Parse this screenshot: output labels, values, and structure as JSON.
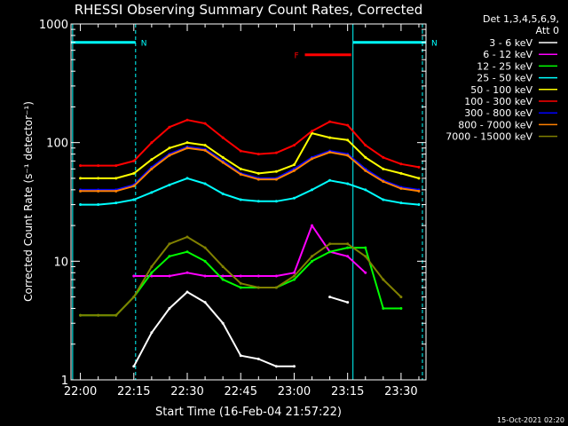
{
  "chart_data": {
    "type": "line",
    "title": "RHESSI Observing Summary Count Rates, Corrected",
    "xlabel": "Start Time (16-Feb-04 21:57:22)",
    "ylabel": "Corrected Count Rate (s⁻¹ detector⁻¹)",
    "yscale": "log",
    "ylim": [
      1,
      1000
    ],
    "xlim": [
      "21:57:22",
      "23:37:00"
    ],
    "x_ticks": [
      "22:00",
      "22:15",
      "22:30",
      "22:45",
      "23:00",
      "23:15",
      "23:30"
    ],
    "y_ticks": [
      "1",
      "10",
      "100",
      "1000"
    ],
    "legend_title": [
      "Det 1,3,4,5,6,9,",
      "Att 0"
    ],
    "legend_placement": "top-right, outside plot",
    "grid": false,
    "footer_text": "15-Oct-2021 02:20",
    "annotations": [
      {
        "label": "N",
        "color": "#00ffff",
        "start": "21:57:22",
        "end": "22:15:30",
        "level": 700,
        "meaning": "night"
      },
      {
        "label": "N",
        "color": "#00ffff",
        "start": "23:16:30",
        "end": "23:37:00",
        "level": 700,
        "meaning": "night"
      },
      {
        "label": "F",
        "color": "#ff0000",
        "start": "23:03:00",
        "end": "23:16:00",
        "level": 550,
        "meaning": "flare"
      }
    ],
    "vertical_lines": [
      {
        "time": "21:57:50",
        "style": "solid",
        "color": "#00ffff"
      },
      {
        "time": "22:15:30",
        "style": "dashed",
        "color": "#00ffff"
      },
      {
        "time": "23:16:30",
        "style": "solid",
        "color": "#00ffff"
      },
      {
        "time": "23:36:00",
        "style": "dashed",
        "color": "#00ffff"
      }
    ],
    "x": [
      "22:00",
      "22:05",
      "22:10",
      "22:15",
      "22:20",
      "22:25",
      "22:30",
      "22:35",
      "22:40",
      "22:45",
      "22:50",
      "22:55",
      "23:00",
      "23:05",
      "23:10",
      "23:15",
      "23:20",
      "23:25",
      "23:30",
      "23:35"
    ],
    "series": [
      {
        "name": "3 - 6 keV",
        "color": "#ffffff",
        "values": [
          null,
          null,
          null,
          1.3,
          2.5,
          4.0,
          5.5,
          4.5,
          3.0,
          1.6,
          1.5,
          1.3,
          1.3,
          null,
          5.0,
          4.5,
          null,
          null,
          null,
          null
        ]
      },
      {
        "name": "6 - 12 keV",
        "color": "#ff00ff",
        "values": [
          null,
          null,
          null,
          7.5,
          7.5,
          7.5,
          8.0,
          7.5,
          7.5,
          7.5,
          7.5,
          7.5,
          8.0,
          20,
          12,
          11,
          8.0,
          null,
          null,
          null
        ]
      },
      {
        "name": "12 - 25 keV",
        "color": "#00ff00",
        "values": [
          3.5,
          3.5,
          3.5,
          5.0,
          8.0,
          11,
          12,
          10,
          7.0,
          6.0,
          6.0,
          6.0,
          7.0,
          10,
          12,
          13,
          13,
          4.0,
          4.0,
          null
        ]
      },
      {
        "name": "25 - 50 keV",
        "color": "#00ffff",
        "values": [
          30,
          30,
          31,
          33,
          38,
          44,
          50,
          45,
          37,
          33,
          32,
          32,
          34,
          40,
          48,
          45,
          40,
          33,
          31,
          30
        ]
      },
      {
        "name": "50 - 100 keV",
        "color": "#ffff00",
        "values": [
          50,
          50,
          50,
          55,
          72,
          90,
          100,
          95,
          75,
          60,
          55,
          57,
          65,
          120,
          110,
          105,
          75,
          60,
          55,
          50
        ]
      },
      {
        "name": "100 - 300 keV",
        "color": "#ff0000",
        "values": [
          64,
          64,
          64,
          70,
          100,
          135,
          155,
          145,
          110,
          85,
          80,
          82,
          95,
          125,
          150,
          140,
          95,
          75,
          66,
          62
        ]
      },
      {
        "name": "300 - 800 keV",
        "color": "#0000ff",
        "values": [
          40,
          40,
          40,
          44,
          62,
          80,
          92,
          88,
          70,
          55,
          50,
          50,
          60,
          75,
          85,
          80,
          60,
          48,
          42,
          40
        ]
      },
      {
        "name": "800 - 7000 keV",
        "color": "#ff8000",
        "values": [
          39,
          39,
          39,
          43,
          60,
          78,
          90,
          86,
          68,
          54,
          49,
          49,
          58,
          73,
          83,
          78,
          58,
          47,
          41,
          39
        ]
      },
      {
        "name": "7000 - 15000 keV",
        "color": "#808000",
        "values": [
          3.5,
          3.5,
          3.5,
          5.0,
          9.0,
          14,
          16,
          13,
          9.0,
          6.5,
          6.0,
          6.0,
          7.5,
          11,
          14,
          14,
          11,
          7.0,
          5.0,
          null
        ]
      }
    ]
  }
}
